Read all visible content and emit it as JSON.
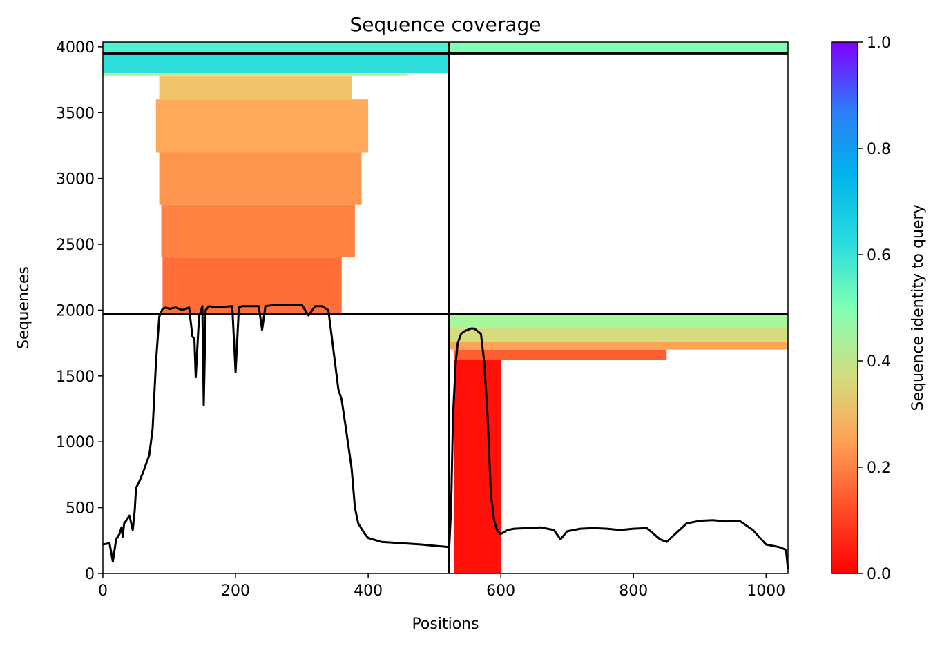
{
  "chart_data": {
    "type": "heatmap",
    "title": "Sequence coverage",
    "xlabel": "Positions",
    "ylabel": "Sequences",
    "xlim": [
      0,
      1033
    ],
    "ylim": [
      0,
      4036
    ],
    "x_ticks": [
      "0",
      "200",
      "400",
      "600",
      "800",
      "1000"
    ],
    "x_tick_values": [
      0,
      200,
      400,
      600,
      800,
      1000
    ],
    "y_ticks": [
      "0",
      "500",
      "1000",
      "1500",
      "2000",
      "2500",
      "3000",
      "3500",
      "4000"
    ],
    "y_tick_values": [
      0,
      500,
      1000,
      1500,
      2000,
      2500,
      3000,
      3500,
      4000
    ],
    "colorbar": {
      "label": "Sequence identity to query",
      "colormap": "rainbow_r",
      "range": [
        0,
        1
      ],
      "ticks": [
        "0.0",
        "0.2",
        "0.4",
        "0.6",
        "0.8",
        "1.0"
      ],
      "tick_values": [
        0,
        0.2,
        0.4,
        0.6,
        0.8,
        1.0
      ]
    },
    "chain_boundaries": {
      "position": 522,
      "sequences": [
        1970,
        3950
      ]
    },
    "coverage_blocks": [
      {
        "x": [
          0,
          522
        ],
        "y": [
          3950,
          4036
        ],
        "identity": 0.6
      },
      {
        "x": [
          522,
          1033
        ],
        "y": [
          3950,
          4036
        ],
        "identity": 0.5
      },
      {
        "x": [
          0,
          522
        ],
        "y": [
          3800,
          3950
        ],
        "identity": 0.66
      },
      {
        "x": [
          0,
          460
        ],
        "y": [
          3780,
          3800
        ],
        "identity": 0.4
      },
      {
        "x": [
          85,
          375
        ],
        "y": [
          3600,
          3780
        ],
        "identity": 0.28
      },
      {
        "x": [
          80,
          400
        ],
        "y": [
          3200,
          3600
        ],
        "identity": 0.23
      },
      {
        "x": [
          85,
          390
        ],
        "y": [
          2800,
          3200
        ],
        "identity": 0.2
      },
      {
        "x": [
          88,
          380
        ],
        "y": [
          2400,
          2800
        ],
        "identity": 0.17
      },
      {
        "x": [
          90,
          360
        ],
        "y": [
          1980,
          2400
        ],
        "identity": 0.14
      },
      {
        "x": [
          522,
          1033
        ],
        "y": [
          1860,
          1970
        ],
        "identity": 0.42
      },
      {
        "x": [
          522,
          1033
        ],
        "y": [
          1760,
          1860
        ],
        "identity": 0.33
      },
      {
        "x": [
          522,
          1033
        ],
        "y": [
          1700,
          1760
        ],
        "identity": 0.22
      },
      {
        "x": [
          530,
          850
        ],
        "y": [
          1620,
          1700
        ],
        "identity": 0.12
      },
      {
        "x": [
          530,
          600
        ],
        "y": [
          0,
          1620
        ],
        "identity": 0.02
      }
    ],
    "coverage_line": {
      "x": [
        0,
        10,
        15,
        20,
        25,
        28,
        30,
        32,
        35,
        40,
        45,
        48,
        50,
        55,
        60,
        70,
        75,
        80,
        85,
        90,
        95,
        100,
        110,
        120,
        130,
        135,
        138,
        140,
        145,
        150,
        152,
        155,
        160,
        170,
        180,
        195,
        200,
        205,
        210,
        220,
        235,
        240,
        245,
        260,
        280,
        300,
        310,
        320,
        330,
        340,
        345,
        350,
        355,
        360,
        365,
        375,
        380,
        385,
        395,
        400,
        420,
        450,
        480,
        500,
        522
      ],
      "y": [
        220,
        230,
        90,
        260,
        300,
        350,
        280,
        380,
        400,
        440,
        330,
        480,
        650,
        700,
        760,
        900,
        1100,
        1600,
        1950,
        2010,
        2020,
        2010,
        2020,
        2000,
        2020,
        1800,
        1780,
        1490,
        1950,
        2030,
        1280,
        2000,
        2030,
        2020,
        2025,
        2030,
        1530,
        2020,
        2030,
        2030,
        2030,
        1850,
        2030,
        2040,
        2040,
        2040,
        1960,
        2030,
        2030,
        2000,
        1800,
        1600,
        1400,
        1320,
        1150,
        800,
        500,
        380,
        300,
        270,
        240,
        230,
        220,
        210,
        200
      ]
    },
    "coverage_line_2": {
      "x": [
        522,
        525,
        528,
        532,
        535,
        540,
        545,
        550,
        555,
        560,
        565,
        570,
        575,
        580,
        585,
        590,
        595,
        600,
        610,
        620,
        640,
        660,
        680,
        690,
        700,
        720,
        740,
        760,
        780,
        800,
        820,
        840,
        850,
        880,
        900,
        920,
        940,
        960,
        980,
        1000,
        1020,
        1030,
        1033
      ],
      "y": [
        180,
        500,
        1200,
        1600,
        1750,
        1820,
        1840,
        1850,
        1860,
        1860,
        1840,
        1820,
        1600,
        1200,
        600,
        400,
        320,
        300,
        330,
        340,
        345,
        350,
        330,
        260,
        320,
        340,
        345,
        340,
        330,
        340,
        345,
        260,
        240,
        380,
        400,
        405,
        395,
        400,
        330,
        220,
        200,
        180,
        30
      ]
    }
  }
}
